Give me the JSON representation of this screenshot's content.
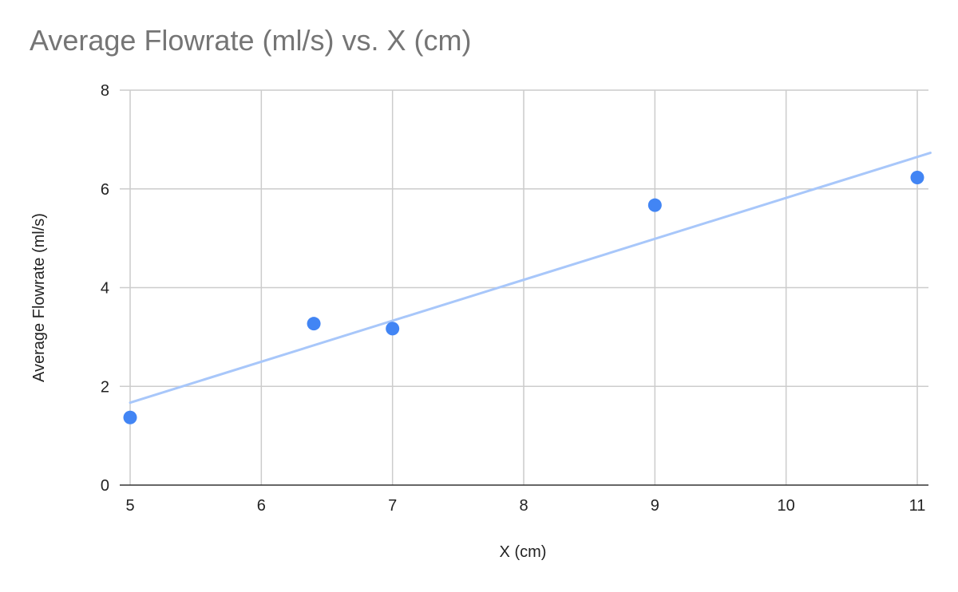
{
  "chart_data": {
    "type": "scatter",
    "title": "Average Flowrate (ml/s) vs. X (cm)",
    "xlabel": "X (cm)",
    "ylabel": "Average Flowrate (ml/s)",
    "xlim": [
      5,
      11
    ],
    "ylim": [
      0,
      8
    ],
    "x_ticks": [
      "5",
      "6",
      "7",
      "8",
      "9",
      "10",
      "11"
    ],
    "y_ticks": [
      "0",
      "2",
      "4",
      "6",
      "8"
    ],
    "grid": true,
    "legend": "none",
    "series": [
      {
        "x": [
          5,
          6.4,
          7,
          9,
          11
        ],
        "y": [
          1.37,
          3.27,
          3.17,
          5.67,
          6.23
        ],
        "color": "#4285f4"
      }
    ],
    "trendline": {
      "type": "linear",
      "from": [
        5,
        1.67
      ],
      "to": [
        11.1,
        6.73
      ],
      "color": "#a8c7fa"
    }
  }
}
